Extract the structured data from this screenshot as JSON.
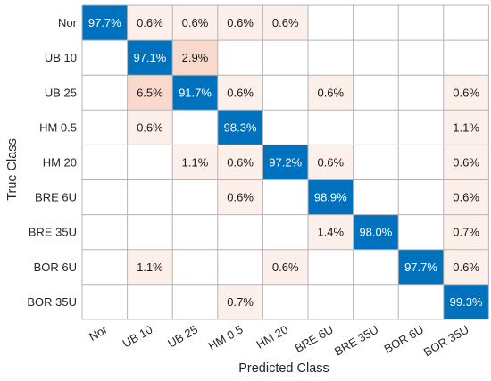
{
  "chart_data": {
    "type": "heatmap",
    "title": "",
    "xlabel": "Predicted Class",
    "ylabel": "True Class",
    "x_categories": [
      "Nor",
      "UB 10",
      "UB 25",
      "HM 0.5",
      "HM 20",
      "BRE 6U",
      "BRE 35U",
      "BOR 6U",
      "BOR 35U"
    ],
    "y_categories": [
      "Nor",
      "UB 10",
      "UB 25",
      "HM 0.5",
      "HM 20",
      "BRE 6U",
      "BRE 35U",
      "BOR 6U",
      "BOR 35U"
    ],
    "cells": [
      [
        "97.7%",
        "0.6%",
        "0.6%",
        "0.6%",
        "0.6%",
        "",
        "",
        "",
        ""
      ],
      [
        "",
        "97.1%",
        "2.9%",
        "",
        "",
        "",
        "",
        "",
        ""
      ],
      [
        "",
        "6.5%",
        "91.7%",
        "0.6%",
        "",
        "0.6%",
        "",
        "",
        "0.6%"
      ],
      [
        "",
        "0.6%",
        "",
        "98.3%",
        "",
        "",
        "",
        "",
        "1.1%"
      ],
      [
        "",
        "",
        "1.1%",
        "0.6%",
        "97.2%",
        "0.6%",
        "",
        "",
        "0.6%"
      ],
      [
        "",
        "",
        "",
        "0.6%",
        "",
        "98.9%",
        "",
        "",
        "0.6%"
      ],
      [
        "",
        "",
        "",
        "",
        "",
        "1.4%",
        "98.0%",
        "",
        "0.7%"
      ],
      [
        "",
        "1.1%",
        "",
        "",
        "0.6%",
        "",
        "",
        "97.7%",
        "0.6%"
      ],
      [
        "",
        "",
        "",
        "0.7%",
        "",
        "",
        "",
        "",
        "99.3%"
      ]
    ],
    "colors": {
      "diagonal": "#0072bd",
      "off_diagonal_low": "#fdefe9",
      "off_diagonal_high": "#f9d9cc",
      "empty": "#ffffff",
      "grid": "#b4b4b4",
      "diagonal_text": "#ffffff",
      "text": "#1a1a1a"
    }
  }
}
